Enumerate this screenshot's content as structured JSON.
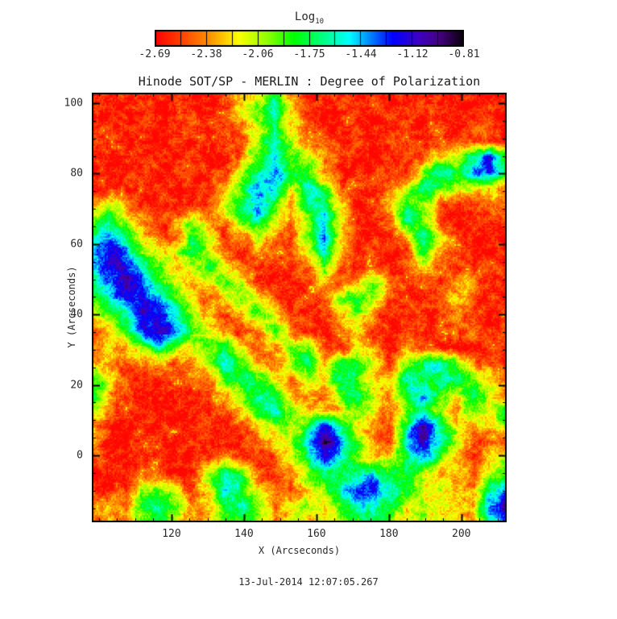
{
  "page": {
    "background": "#ffffff"
  },
  "chart_data": {
    "type": "heatmap",
    "title": "Hinode SOT/SP - MERLIN : Degree of Polarization",
    "xlabel": "X (Arcseconds)",
    "ylabel": "Y (Arcseconds)",
    "timestamp": "13-Jul-2014 12:07:05.267",
    "x_range": [
      98,
      212.5
    ],
    "y_range": [
      -19,
      103
    ],
    "x_tick_values": [
      120,
      140,
      160,
      180,
      200
    ],
    "x_tick_labels": [
      "120",
      "140",
      "160",
      "180",
      "200"
    ],
    "y_tick_values": [
      0,
      20,
      40,
      60,
      80,
      100
    ],
    "y_tick_labels": [
      "0",
      "20",
      "40",
      "60",
      "80",
      "100"
    ],
    "minor_tick_step": 5,
    "colorbar": {
      "title_base": "Log",
      "title_sub": "10",
      "tick_labels": [
        "-2.69",
        "-2.38",
        "-2.06",
        "-1.75",
        "-1.44",
        "-1.12",
        "-0.81"
      ],
      "vmin": -2.69,
      "vmax": -0.81,
      "divisions": 12
    },
    "colormap_stops": [
      [
        0.0,
        255,
        0,
        0
      ],
      [
        0.09,
        255,
        70,
        0
      ],
      [
        0.18,
        255,
        150,
        0
      ],
      [
        0.27,
        255,
        255,
        0
      ],
      [
        0.36,
        150,
        255,
        0
      ],
      [
        0.45,
        0,
        255,
        0
      ],
      [
        0.53,
        0,
        255,
        110
      ],
      [
        0.63,
        0,
        255,
        255
      ],
      [
        0.7,
        0,
        128,
        255
      ],
      [
        0.77,
        0,
        0,
        255
      ],
      [
        0.85,
        60,
        0,
        200
      ],
      [
        0.92,
        70,
        0,
        130
      ],
      [
        1.0,
        8,
        0,
        10
      ]
    ],
    "grid_note": "coarse normalized log10-polarization map, 0=red(low, -2.69) .. 99=black(high, -0.81); rows top(Y=103) to bottom(Y=-19), cols left(X=98) to right(X=212.5)",
    "grid": {
      "cols": 26,
      "rows": 28,
      "values": [
        [
          5,
          5,
          5,
          5,
          5,
          5,
          5,
          5,
          12,
          20,
          30,
          45,
          18,
          5,
          5,
          5,
          5,
          5,
          5,
          5,
          5,
          5,
          5,
          5,
          5,
          5
        ],
        [
          5,
          5,
          5,
          5,
          5,
          5,
          5,
          5,
          8,
          25,
          40,
          55,
          22,
          5,
          5,
          5,
          5,
          5,
          5,
          5,
          5,
          5,
          5,
          5,
          5,
          5
        ],
        [
          5,
          5,
          5,
          5,
          5,
          5,
          8,
          5,
          5,
          15,
          30,
          52,
          28,
          8,
          5,
          5,
          5,
          5,
          5,
          5,
          5,
          5,
          5,
          5,
          8,
          5
        ],
        [
          5,
          5,
          5,
          5,
          5,
          5,
          5,
          5,
          5,
          10,
          35,
          60,
          30,
          10,
          5,
          5,
          5,
          5,
          5,
          5,
          5,
          5,
          8,
          15,
          10,
          5
        ],
        [
          5,
          5,
          5,
          5,
          5,
          5,
          5,
          5,
          5,
          18,
          40,
          62,
          38,
          35,
          15,
          5,
          5,
          5,
          5,
          5,
          12,
          25,
          35,
          55,
          78,
          45
        ],
        [
          5,
          5,
          5,
          5,
          5,
          5,
          5,
          5,
          12,
          30,
          58,
          72,
          48,
          45,
          15,
          5,
          5,
          5,
          5,
          10,
          38,
          58,
          48,
          68,
          82,
          40
        ],
        [
          5,
          5,
          5,
          5,
          5,
          5,
          5,
          5,
          20,
          45,
          68,
          58,
          30,
          58,
          45,
          10,
          5,
          5,
          10,
          30,
          52,
          40,
          28,
          32,
          25,
          10
        ],
        [
          20,
          30,
          15,
          5,
          5,
          5,
          5,
          10,
          30,
          55,
          72,
          45,
          15,
          50,
          65,
          20,
          5,
          5,
          22,
          48,
          35,
          12,
          5,
          8,
          10,
          18
        ],
        [
          40,
          55,
          35,
          15,
          8,
          18,
          35,
          20,
          15,
          40,
          60,
          30,
          8,
          40,
          68,
          25,
          5,
          5,
          8,
          58,
          35,
          8,
          5,
          5,
          5,
          8
        ],
        [
          55,
          70,
          55,
          25,
          5,
          12,
          48,
          30,
          8,
          15,
          30,
          15,
          5,
          35,
          72,
          30,
          5,
          5,
          5,
          25,
          55,
          28,
          5,
          5,
          5,
          5
        ],
        [
          65,
          85,
          70,
          45,
          20,
          28,
          52,
          38,
          12,
          5,
          15,
          8,
          5,
          28,
          58,
          25,
          5,
          5,
          5,
          8,
          42,
          20,
          5,
          5,
          5,
          5
        ],
        [
          70,
          80,
          85,
          60,
          38,
          20,
          35,
          48,
          32,
          10,
          5,
          5,
          5,
          15,
          38,
          15,
          5,
          5,
          5,
          5,
          22,
          10,
          5,
          5,
          5,
          5
        ],
        [
          52,
          72,
          88,
          72,
          52,
          32,
          15,
          25,
          42,
          28,
          8,
          5,
          5,
          5,
          18,
          10,
          28,
          42,
          15,
          5,
          8,
          5,
          22,
          15,
          5,
          5
        ],
        [
          42,
          58,
          72,
          80,
          62,
          45,
          28,
          12,
          20,
          38,
          28,
          10,
          5,
          5,
          8,
          38,
          50,
          32,
          10,
          5,
          5,
          15,
          18,
          8,
          5,
          5
        ],
        [
          20,
          38,
          55,
          82,
          78,
          62,
          42,
          22,
          10,
          18,
          42,
          28,
          8,
          5,
          5,
          22,
          30,
          12,
          5,
          5,
          5,
          8,
          18,
          5,
          5,
          5
        ],
        [
          8,
          20,
          42,
          72,
          85,
          72,
          48,
          30,
          15,
          8,
          20,
          38,
          18,
          5,
          5,
          10,
          22,
          8,
          5,
          5,
          5,
          5,
          8,
          12,
          5,
          5
        ],
        [
          10,
          22,
          15,
          42,
          55,
          38,
          25,
          45,
          52,
          25,
          10,
          15,
          32,
          42,
          15,
          5,
          28,
          15,
          5,
          20,
          10,
          5,
          5,
          8,
          5,
          5
        ],
        [
          28,
          15,
          8,
          20,
          25,
          12,
          15,
          35,
          58,
          45,
          20,
          12,
          38,
          52,
          25,
          42,
          52,
          28,
          10,
          42,
          55,
          62,
          38,
          15,
          8,
          5
        ],
        [
          45,
          28,
          10,
          5,
          8,
          5,
          8,
          15,
          40,
          55,
          45,
          25,
          15,
          38,
          28,
          52,
          45,
          20,
          32,
          58,
          45,
          48,
          58,
          42,
          28,
          10
        ],
        [
          50,
          22,
          8,
          5,
          5,
          5,
          5,
          8,
          20,
          42,
          58,
          50,
          28,
          15,
          10,
          38,
          52,
          32,
          15,
          45,
          68,
          45,
          25,
          52,
          38,
          15
        ],
        [
          28,
          12,
          5,
          5,
          5,
          5,
          5,
          5,
          8,
          25,
          45,
          58,
          38,
          18,
          28,
          20,
          42,
          28,
          12,
          32,
          55,
          32,
          15,
          42,
          25,
          48
        ],
        [
          12,
          5,
          5,
          5,
          5,
          5,
          5,
          5,
          5,
          10,
          25,
          38,
          30,
          45,
          78,
          55,
          32,
          15,
          10,
          58,
          85,
          62,
          28,
          15,
          20,
          40
        ],
        [
          18,
          8,
          5,
          5,
          5,
          5,
          5,
          5,
          8,
          5,
          10,
          20,
          35,
          60,
          95,
          68,
          40,
          15,
          12,
          68,
          88,
          58,
          32,
          10,
          8,
          15
        ],
        [
          10,
          5,
          5,
          5,
          5,
          5,
          8,
          12,
          25,
          10,
          5,
          10,
          25,
          48,
          84,
          58,
          35,
          25,
          38,
          55,
          65,
          40,
          22,
          8,
          22,
          30
        ],
        [
          5,
          5,
          5,
          8,
          10,
          5,
          8,
          32,
          52,
          38,
          15,
          8,
          15,
          35,
          55,
          45,
          55,
          65,
          50,
          45,
          35,
          20,
          28,
          10,
          30,
          45
        ],
        [
          8,
          5,
          10,
          32,
          45,
          25,
          10,
          25,
          68,
          50,
          22,
          10,
          12,
          25,
          40,
          55,
          68,
          80,
          58,
          48,
          30,
          35,
          20,
          15,
          58,
          75
        ],
        [
          12,
          22,
          15,
          48,
          58,
          45,
          18,
          20,
          50,
          60,
          38,
          15,
          28,
          32,
          25,
          45,
          55,
          62,
          45,
          28,
          38,
          22,
          30,
          18,
          72,
          85
        ],
        [
          10,
          25,
          12,
          38,
          45,
          30,
          15,
          25,
          40,
          45,
          32,
          22,
          25,
          20,
          30,
          35,
          45,
          50,
          40,
          25,
          30,
          20,
          25,
          15,
          58,
          68
        ]
      ]
    },
    "noise": {
      "seed": 77,
      "amplitude": 0.34
    }
  }
}
